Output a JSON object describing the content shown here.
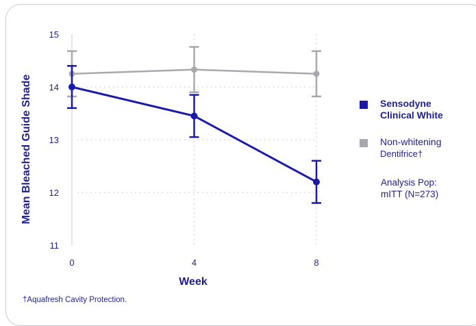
{
  "chart_data": {
    "type": "line",
    "x": [
      0,
      4,
      8
    ],
    "xlabel": "Week",
    "ylabel": "Mean Bleached Guide Shade",
    "ylim": [
      11,
      15
    ],
    "yticks": [
      "11",
      "12",
      "13",
      "14",
      "15"
    ],
    "xticks": [
      "0",
      "4",
      "8"
    ],
    "grid": true,
    "legend_position": "right",
    "series": [
      {
        "name": "Sensodyne Clinical White",
        "color": "#1a1aa6",
        "values": [
          14.0,
          13.45,
          12.2
        ],
        "err_low": [
          13.6,
          13.05,
          11.8
        ],
        "err_high": [
          14.4,
          13.85,
          12.6
        ]
      },
      {
        "name": "Non-whitening Dentifrice†",
        "color": "#a8a8ad",
        "values": [
          14.25,
          14.33,
          14.25
        ],
        "err_low": [
          13.82,
          13.9,
          13.82
        ],
        "err_high": [
          14.68,
          14.76,
          14.68
        ]
      }
    ]
  },
  "legend": {
    "series1_line1": "Sensodyne",
    "series1_line2": "Clinical White",
    "series2_line1": "Non-whitening",
    "series2_line2": "Dentifrice†"
  },
  "analysis": {
    "line1": "Analysis Pop:",
    "line2": "mITT (N=273)"
  },
  "footnote": "†Aquafresh Cavity Protection."
}
